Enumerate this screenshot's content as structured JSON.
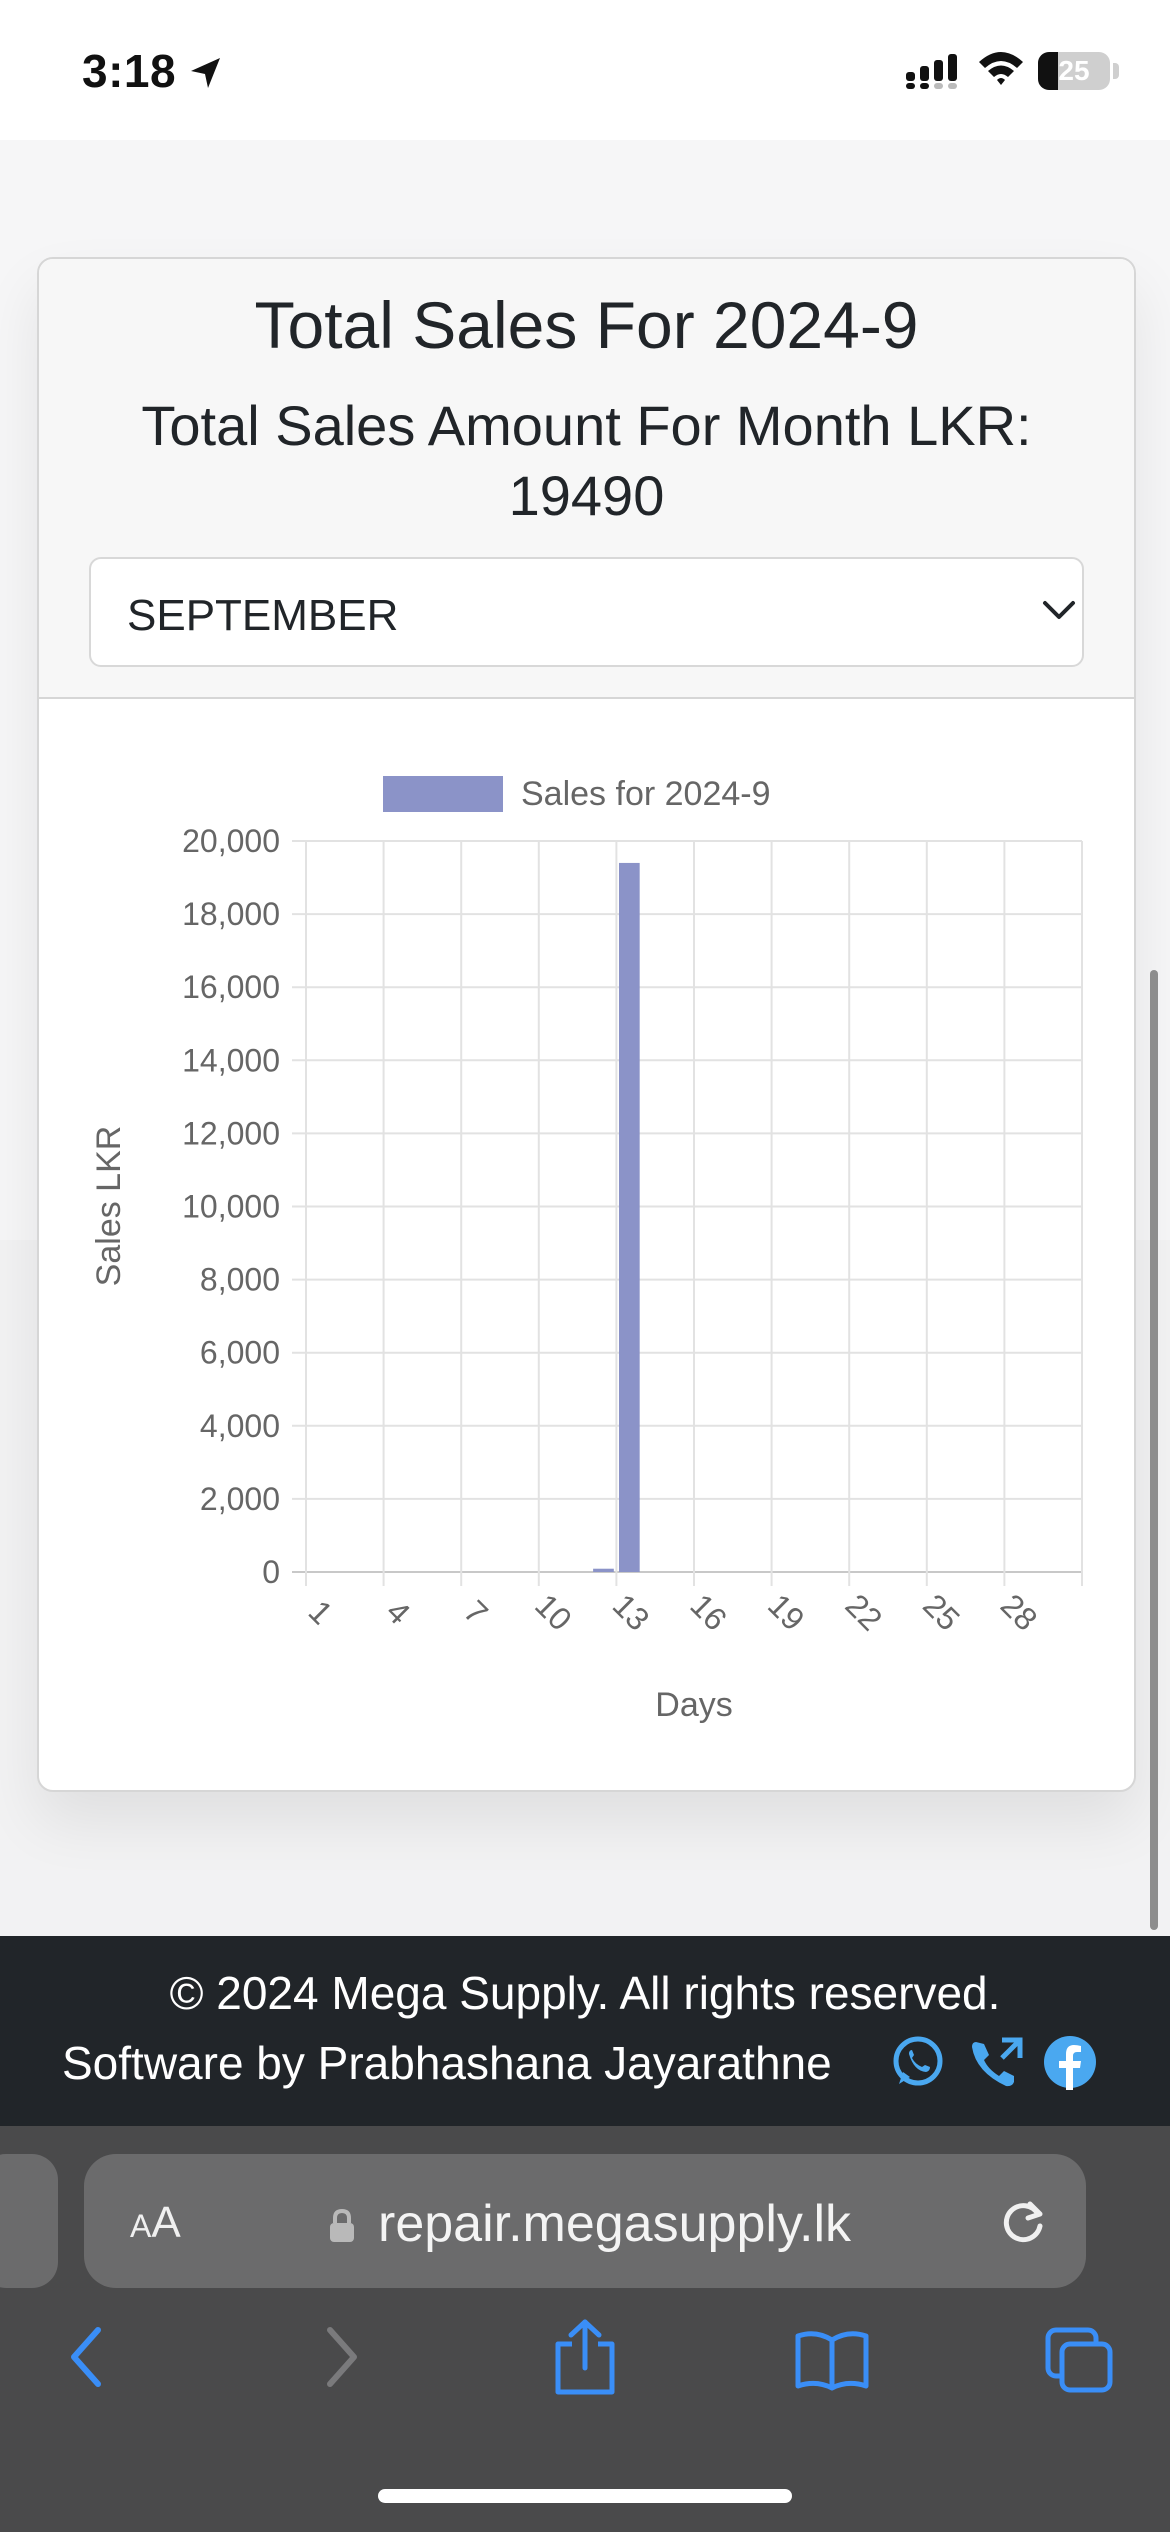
{
  "status_bar": {
    "time": "3:18",
    "battery": "25"
  },
  "card": {
    "title": "Total Sales For 2024-9",
    "subtitle": "Total Sales Amount For Month LKR: 19490",
    "month_select": {
      "selected": "SEPTEMBER"
    }
  },
  "chart_data": {
    "type": "bar",
    "legend": "Sales for 2024-9",
    "legend_position": "top",
    "x": [
      1,
      2,
      3,
      4,
      5,
      6,
      7,
      8,
      9,
      10,
      11,
      12,
      13,
      14,
      15,
      16,
      17,
      18,
      19,
      20,
      21,
      22,
      23,
      24,
      25,
      26,
      27,
      28,
      29,
      30
    ],
    "x_tick_labels": [
      "1",
      "4",
      "7",
      "10",
      "13",
      "16",
      "19",
      "22",
      "25",
      "28"
    ],
    "series": [
      {
        "name": "Sales for 2024-9",
        "color": "#8b93c8",
        "values": [
          0,
          0,
          0,
          0,
          0,
          0,
          0,
          0,
          0,
          0,
          0,
          90,
          19400,
          0,
          0,
          0,
          0,
          0,
          0,
          0,
          0,
          0,
          0,
          0,
          0,
          0,
          0,
          0,
          0,
          0
        ]
      }
    ],
    "ylim": [
      0,
      20000
    ],
    "y_ticks": [
      "0",
      "2,000",
      "4,000",
      "6,000",
      "8,000",
      "10,000",
      "12,000",
      "14,000",
      "16,000",
      "18,000",
      "20,000"
    ],
    "xlabel": "Days",
    "ylabel": "Sales LKR",
    "grid": true
  },
  "footer": {
    "copyright": "© 2024 Mega Supply. All rights reserved.",
    "credit": "Software by Prabhashana Jayarathne",
    "social_icons": [
      "whatsapp-icon",
      "phone-icon",
      "facebook-icon"
    ],
    "accent_color": "#4aa8f0"
  },
  "browser": {
    "aa_label_small": "A",
    "aa_label_large": "A",
    "url": "repair.megasupply.lk",
    "accent_color": "#3a8ef7"
  }
}
